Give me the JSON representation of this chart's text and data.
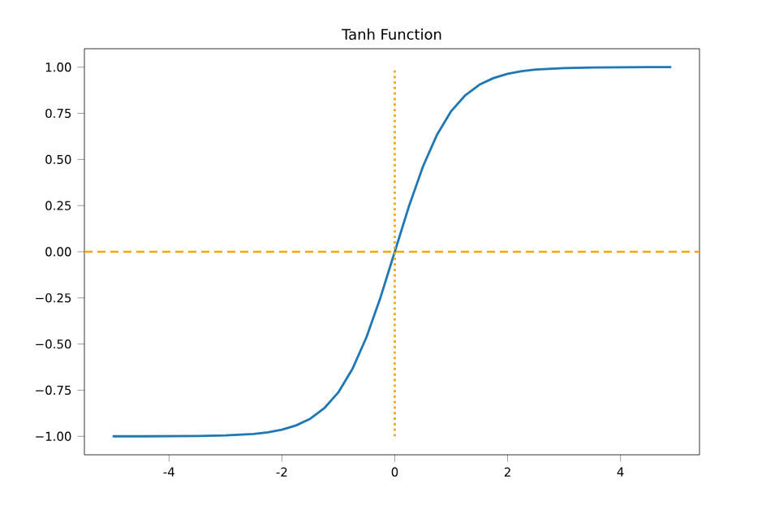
{
  "chart_data": {
    "type": "line",
    "title": "Tanh Function",
    "xlim": [
      -5.5,
      5.4
    ],
    "ylim": [
      -1.1,
      1.1
    ],
    "xticks": [
      -4,
      -2,
      0,
      2,
      4
    ],
    "yticks": [
      {
        "value": -1,
        "label": "−1.00"
      },
      {
        "value": -0.75,
        "label": "−0.75"
      },
      {
        "value": -0.5,
        "label": "−0.50"
      },
      {
        "value": -0.25,
        "label": "−0.25"
      },
      {
        "value": 0,
        "label": "0.00"
      },
      {
        "value": 0.25,
        "label": "0.25"
      },
      {
        "value": 0.5,
        "label": "0.50"
      },
      {
        "value": 0.75,
        "label": "0.75"
      },
      {
        "value": 1,
        "label": "1.00"
      }
    ],
    "grid": false,
    "series": [
      {
        "color": "#1f77b4",
        "line_style": "solid",
        "x": [
          -5,
          -4.5,
          -4,
          -3.5,
          -3,
          -2.5,
          -2.25,
          -2,
          -1.75,
          -1.5,
          -1.25,
          -1,
          -0.75,
          -0.5,
          -0.25,
          0,
          0.25,
          0.5,
          0.75,
          1,
          1.25,
          1.5,
          1.75,
          2,
          2.25,
          2.5,
          3,
          3.5,
          4,
          4.5,
          4.9
        ],
        "values": [
          -1,
          -1,
          -0.999,
          -0.998,
          -0.995,
          -0.987,
          -0.978,
          -0.964,
          -0.941,
          -0.905,
          -0.848,
          -0.762,
          -0.635,
          -0.462,
          -0.245,
          0,
          0.245,
          0.462,
          0.635,
          0.762,
          0.848,
          0.905,
          0.941,
          0.964,
          0.978,
          0.987,
          0.995,
          0.998,
          0.999,
          1,
          1
        ]
      },
      {
        "color": "#ffa500",
        "line_style": "dotted",
        "x": [
          0,
          0
        ],
        "values": [
          -1,
          1
        ]
      }
    ],
    "ref_lines": [
      {
        "axis": "y",
        "value": 0,
        "color": "#ffa500",
        "line_style": "dashed"
      }
    ]
  }
}
